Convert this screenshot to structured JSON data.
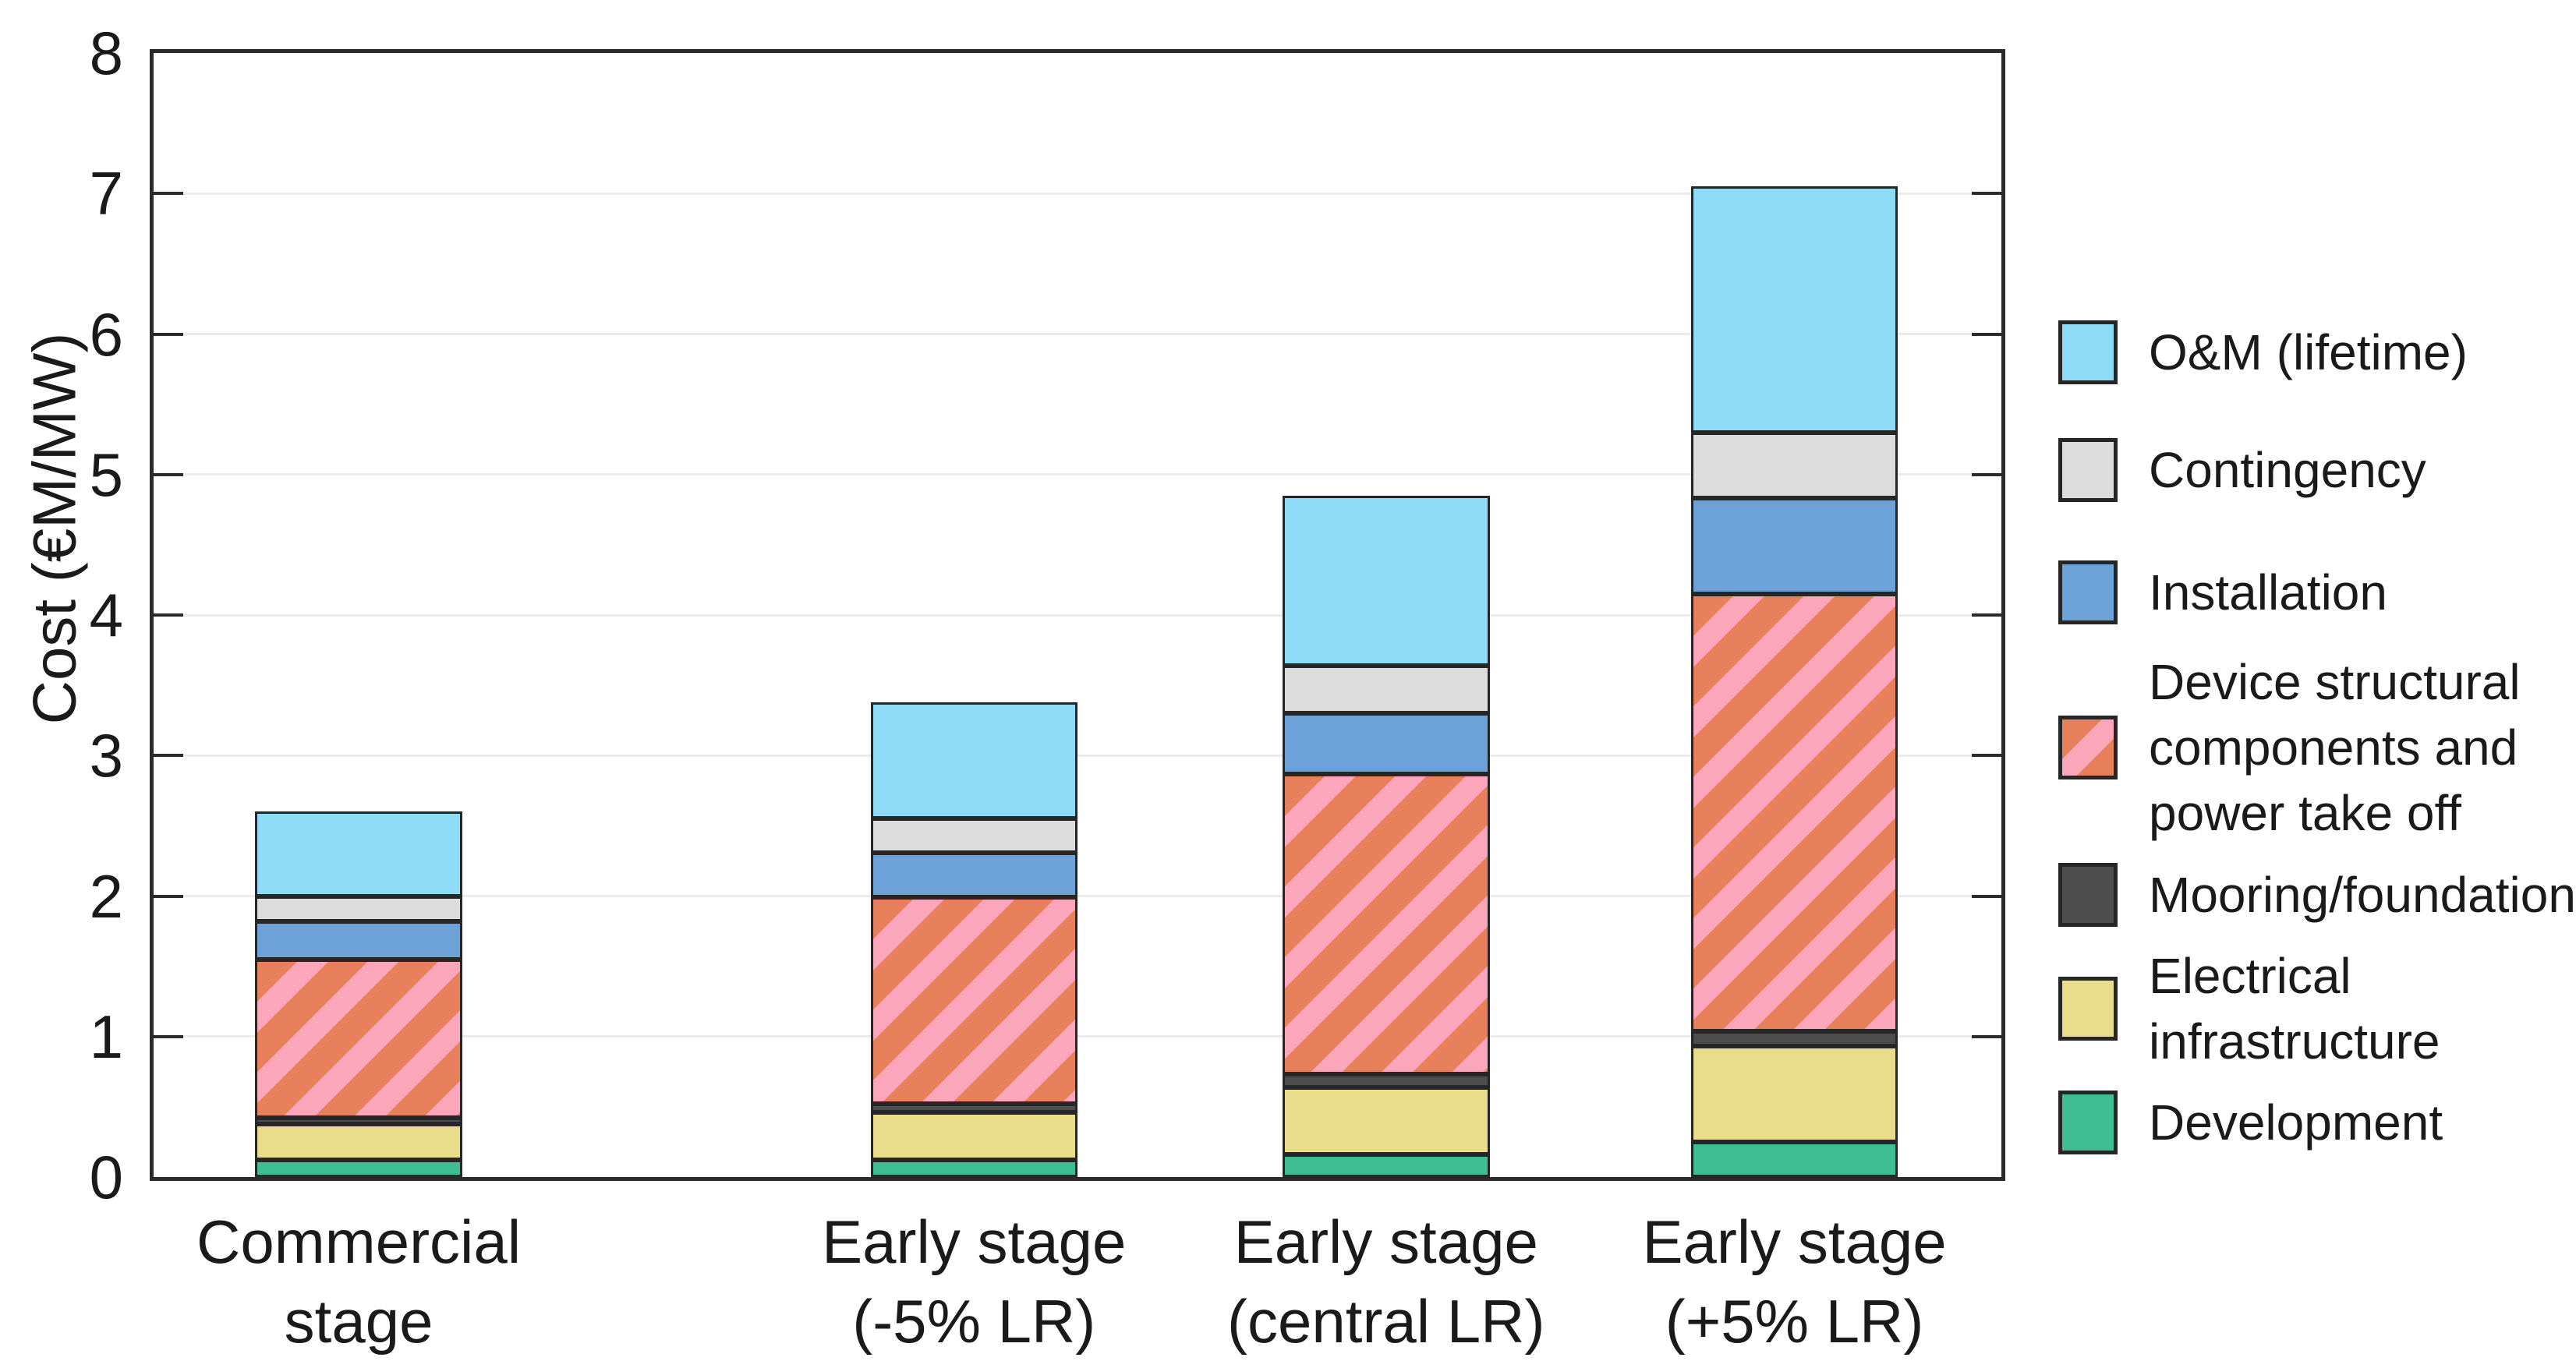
{
  "figure": {
    "background": "#ffffff"
  },
  "chart_data": {
    "type": "bar",
    "stacked": true,
    "title": "",
    "xlabel": "",
    "ylabel": "Cost (€M/MW)",
    "ylim": [
      0,
      8
    ],
    "y_ticks": [
      "0",
      "1",
      "2",
      "3",
      "4",
      "5",
      "6",
      "7",
      "8"
    ],
    "grid": "horizontal light gray lines at integer values, boxed axes, inward tick marks",
    "legend_position": "right of plot, outside",
    "categories": [
      "Commercial stage",
      "Early stage (-5% LR)",
      "Early stage (central LR)",
      "Early stage (+5% LR)"
    ],
    "category_label_lines": [
      "Commercial\nstage",
      "Early stage\n(-5% LR)",
      "Early stage\n(central LR)",
      "Early stage\n(+5% LR)"
    ],
    "series": [
      {
        "name": "Development",
        "color": "#3fbd93",
        "values": [
          0.12,
          0.12,
          0.16,
          0.25
        ]
      },
      {
        "name": "Electrical infrastructure",
        "color": "#e9dd8c",
        "values": [
          0.26,
          0.34,
          0.48,
          0.68
        ]
      },
      {
        "name": "Mooring/foundation",
        "color": "#4d4d4d",
        "values": [
          0.04,
          0.06,
          0.09,
          0.11
        ]
      },
      {
        "name": "Device structural components and power take off",
        "color": "#e8815b",
        "pattern": "diagonal-pink-stripes",
        "pattern_color": "#fba6ba",
        "values": [
          1.13,
          1.47,
          2.14,
          3.11
        ]
      },
      {
        "name": "Installation",
        "color": "#6ca2d8",
        "values": [
          0.27,
          0.32,
          0.43,
          0.68
        ]
      },
      {
        "name": "Contingency",
        "color": "#dcdcdc",
        "values": [
          0.18,
          0.24,
          0.34,
          0.47
        ]
      },
      {
        "name": "O&M (lifetime)",
        "color": "#8edbf8",
        "values": [
          0.6,
          0.83,
          1.21,
          1.75
        ]
      }
    ],
    "totals": [
      2.6,
      3.38,
      4.85,
      7.05
    ],
    "layout": {
      "bar_centers_pct": [
        11.1,
        44.4,
        66.7,
        88.8
      ],
      "bar_width_pct": 11.2
    }
  },
  "legend": {
    "items": [
      {
        "label": "O&M (lifetime)",
        "lines": "O&M (lifetime)",
        "swatch": "#8edbf8",
        "hatched": false
      },
      {
        "label": "Contingency",
        "lines": "Contingency",
        "swatch": "#dcdcdc",
        "hatched": false
      },
      {
        "label": "Installation",
        "lines": "Installation",
        "swatch": "#6ca2d8",
        "hatched": false
      },
      {
        "label": "Device structural components and power take off",
        "lines": "Device structural\ncomponents and\npower take off",
        "swatch": "#e8815b",
        "hatched": true
      },
      {
        "label": "Mooring/foundation",
        "lines": "Mooring/foundation",
        "swatch": "#4d4d4d",
        "hatched": false
      },
      {
        "label": "Electrical infrastructure",
        "lines": "Electrical\ninfrastructure",
        "swatch": "#e9dd8c",
        "hatched": false
      },
      {
        "label": "Development",
        "lines": "Development",
        "swatch": "#3fbd93",
        "hatched": false
      }
    ]
  },
  "colors": {
    "axis": "#2b2b2b",
    "grid": "#ececec",
    "text": "#1a1a1a",
    "segment_border": "#262626",
    "hatch_base": "#e8815b",
    "hatch_stripe": "#fba6ba"
  }
}
